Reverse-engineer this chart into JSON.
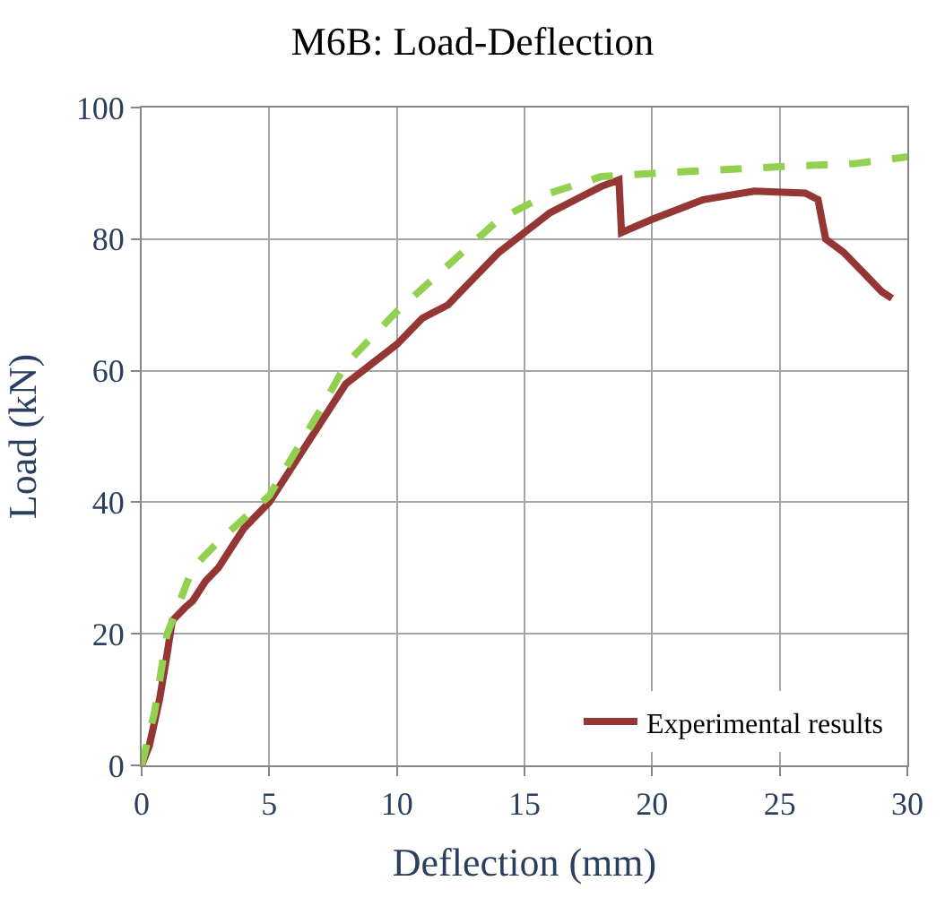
{
  "chart_data": {
    "type": "line",
    "title": "M6B: Load-Deflection",
    "xlabel": "Deflection (mm)",
    "ylabel": "Load (kN)",
    "xlim": [
      0,
      30
    ],
    "xticks": [
      0,
      5,
      10,
      15,
      20,
      25,
      30
    ],
    "ylim": [
      0,
      100
    ],
    "yticks": [
      0,
      20,
      40,
      60,
      80,
      100
    ],
    "grid": true,
    "legend": "bottom right",
    "marker": "none",
    "series": [
      {
        "name": "Experimental results",
        "color": "#943634",
        "line_style": "solid",
        "x": [
          0,
          0.3,
          0.7,
          1,
          1.2,
          1.7,
          2,
          2.5,
          3,
          3.5,
          4,
          5,
          6,
          7,
          8,
          9,
          10,
          11,
          12,
          13,
          14,
          15,
          16,
          17,
          18,
          18.7,
          18.8,
          20,
          22,
          24,
          26,
          26.5,
          26.8,
          27.5,
          28.5,
          29,
          29.4
        ],
        "values": [
          0,
          3,
          10,
          17,
          22,
          24,
          25,
          28,
          30,
          33,
          36,
          40,
          46,
          52,
          58,
          61,
          64,
          68,
          70,
          74,
          78,
          81,
          84,
          86,
          88,
          89,
          81,
          83,
          86,
          87.3,
          87,
          86,
          80,
          78,
          74,
          72,
          71
        ]
      },
      {
        "color": "#92d050",
        "line_style": "dashed",
        "x": [
          0,
          0.5,
          1,
          2,
          3,
          5,
          7,
          8,
          10,
          12,
          14,
          16,
          18,
          20,
          25,
          28,
          30
        ],
        "values": [
          0,
          8,
          20,
          30,
          34,
          41,
          54,
          61,
          69,
          76,
          83,
          87,
          89.5,
          90,
          91,
          91.5,
          92.5
        ]
      }
    ]
  }
}
